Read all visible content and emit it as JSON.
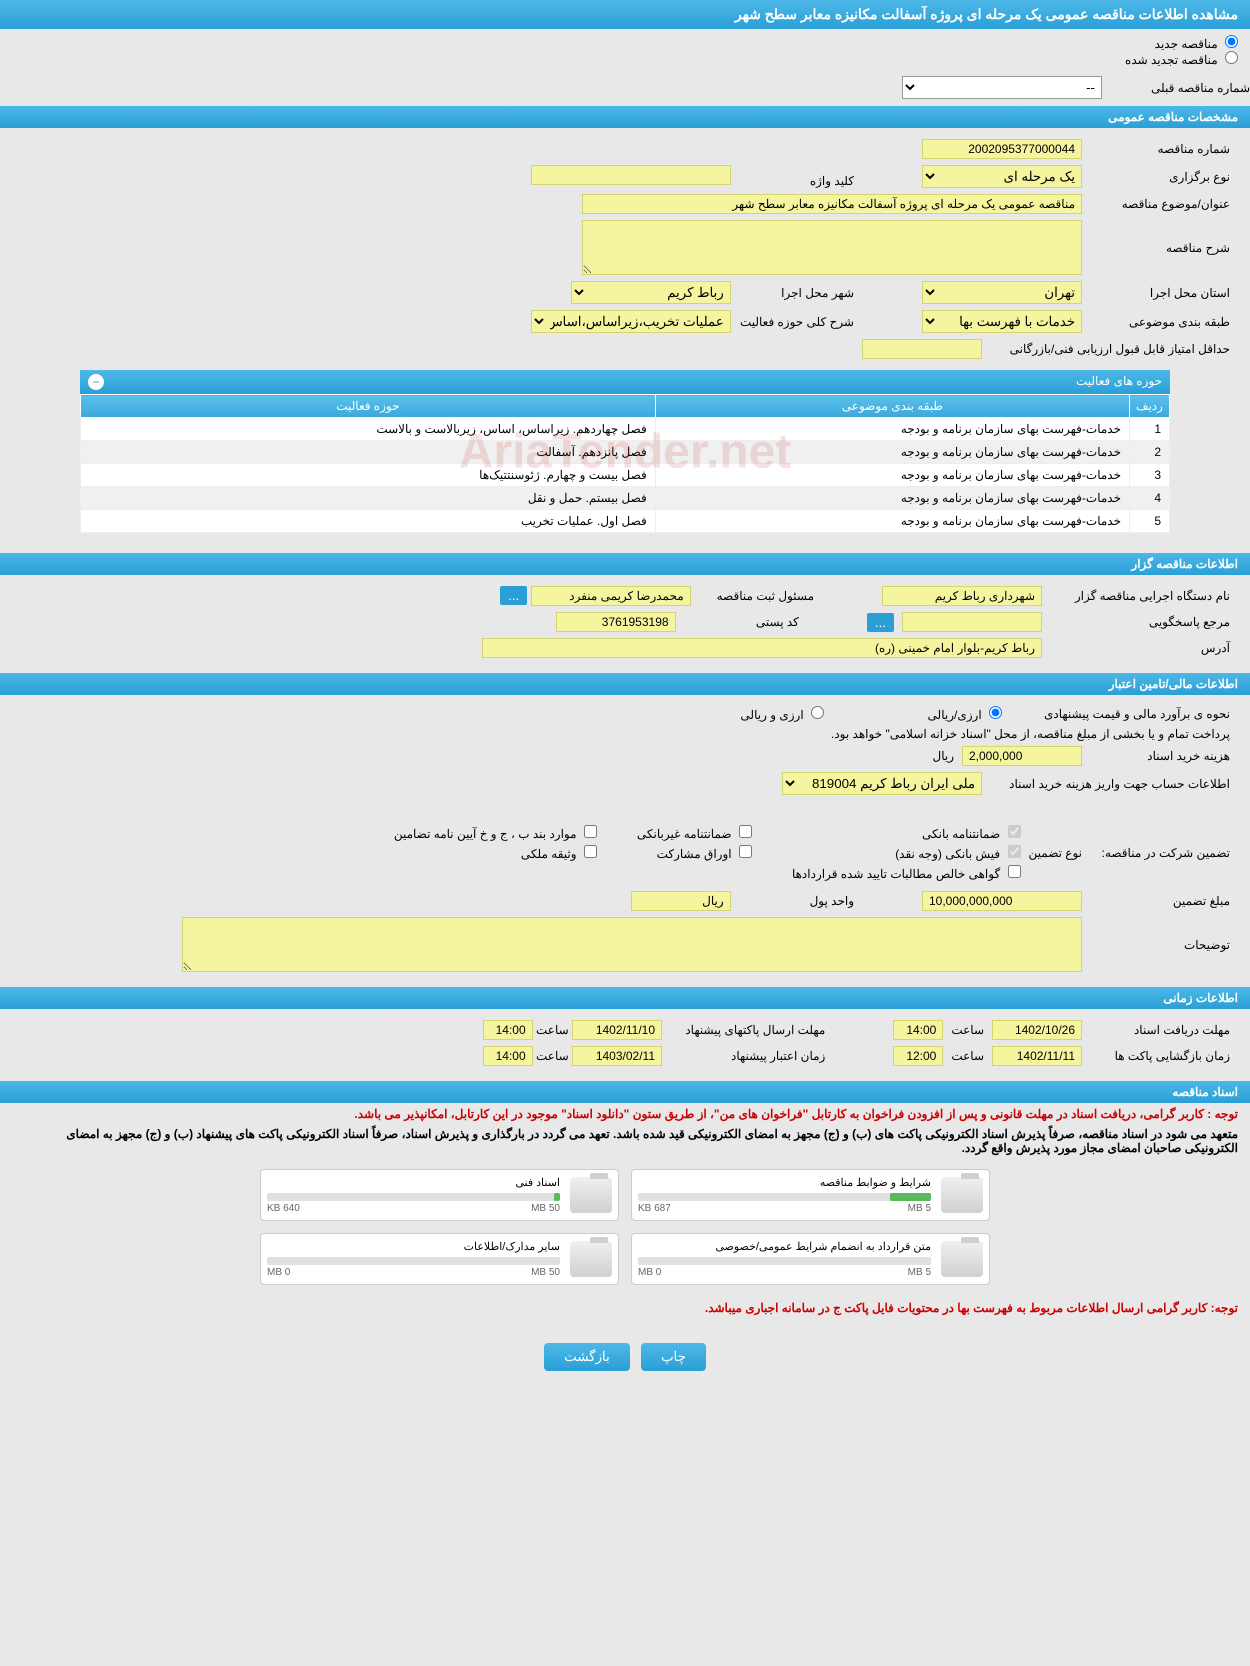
{
  "header": {
    "title": "مشاهده اطلاعات مناقصه عمومی یک مرحله ای پروژه آسفالت مکانیزه معابر سطح شهر"
  },
  "tender_status": {
    "new_label": "مناقصه جدید",
    "renewed_label": "مناقصه تجدید شده",
    "prev_number_label": "شماره مناقصه قبلی",
    "prev_number_value": "--"
  },
  "sections": {
    "general": "مشخصات مناقصه عمومی",
    "organizer": "اطلاعات مناقصه گزار",
    "financial": "اطلاعات مالی/تامین اعتبار",
    "timing": "اطلاعات زمانی",
    "documents": "اسناد مناقصه"
  },
  "general": {
    "number_label": "شماره مناقصه",
    "number_value": "2002095377000044",
    "type_label": "نوع برگزاری",
    "type_value": "یک مرحله ای",
    "keyword_label": "کلید واژه",
    "keyword_value": "",
    "subject_label": "عنوان/موضوع مناقصه",
    "subject_value": "مناقصه عمومی یک مرحله ای پروژه آسفالت مکانیزه معابر سطح شهر",
    "description_label": "شرح مناقصه",
    "description_value": "",
    "province_label": "استان محل اجرا",
    "province_value": "تهران",
    "city_label": "شهر محل اجرا",
    "city_value": "رباط کریم",
    "category_label": "طبقه بندی موضوعی",
    "category_value": "خدمات با فهرست بها",
    "activity_desc_label": "شرح کلی حوزه فعالیت",
    "activity_desc_value": "عملیات تخریب،زیراساس،اساس،زیربالاست",
    "min_score_label": "حداقل امتیاز قابل قبول ارزیابی فنی/بازرگانی",
    "min_score_value": ""
  },
  "activity_table": {
    "title": "حوزه های فعالیت",
    "col_row": "ردیف",
    "col_category": "طبقه بندی موضوعی",
    "col_field": "حوزه فعالیت",
    "rows": [
      {
        "n": "1",
        "cat": "خدمات-فهرست بهای سازمان برنامه و بودجه",
        "field": "فصل چهاردهم. زیراساس، اساس، زیربالاست و بالاست"
      },
      {
        "n": "2",
        "cat": "خدمات-فهرست بهای سازمان برنامه و بودجه",
        "field": "فصل پانزدهم. آسفالت"
      },
      {
        "n": "3",
        "cat": "خدمات-فهرست بهای سازمان برنامه و بودجه",
        "field": "فصل بیست و چهارم. ژئوسنتتیک‌ها"
      },
      {
        "n": "4",
        "cat": "خدمات-فهرست بهای سازمان برنامه و بودجه",
        "field": "فصل بیستم. حمل و نقل"
      },
      {
        "n": "5",
        "cat": "خدمات-فهرست بهای سازمان برنامه و بودجه",
        "field": "فصل اول. عملیات تخریب"
      }
    ]
  },
  "organizer": {
    "org_label": "نام دستگاه اجرایی مناقصه گزار",
    "org_value": "شهرداری رباط کریم",
    "responsible_label": "مسئول ثبت مناقصه",
    "responsible_value": "محمدرضا کریمی منفرد",
    "contact_label": "مرجع پاسخگویی",
    "contact_value": "",
    "postal_label": "کد پستی",
    "postal_value": "3761953198",
    "address_label": "آدرس",
    "address_value": "رباط کریم-بلوار امام خمینی (ره)",
    "more_btn": "..."
  },
  "financial": {
    "estimate_label": "نحوه ی برآورد مالی و قیمت پیشنهادی",
    "option_fx": "ارزی/ریالی",
    "option_rial": "ارزی و ریالی",
    "payment_note": "پرداخت تمام و یا بخشی از مبلغ مناقصه، از محل \"اسناد خزانه اسلامی\" خواهد بود.",
    "doc_cost_label": "هزینه خرید اسناد",
    "doc_cost_value": "2,000,000",
    "currency_rial": "ریال",
    "account_label": "اطلاعات حساب جهت واریز هزینه خرید اسناد",
    "account_value": "ملی ایران رباط کریم 819004",
    "guarantee_label": "تضمین شرکت در مناقصه:",
    "guarantee_type_label": "نوع تضمین",
    "chk_bank_guarantee": "ضمانتنامه بانکی",
    "chk_nonbank_guarantee": "ضمانتنامه غیربانکی",
    "chk_items_bcd": "موارد بند ب ، ج و خ آیین نامه تضامین",
    "chk_cash": "فیش بانکی (وجه نقد)",
    "chk_securities": "اوراق مشارکت",
    "chk_property": "وثیقه ملکی",
    "chk_receivables": "گواهی خالص مطالبات تایید شده قراردادها",
    "guarantee_amount_label": "مبلغ تضمین",
    "guarantee_amount_value": "10,000,000,000",
    "currency_unit_label": "واحد پول",
    "currency_unit_value": "ریال",
    "notes_label": "توضیحات",
    "notes_value": ""
  },
  "timing": {
    "receive_deadline_label": "مهلت دریافت اسناد",
    "receive_deadline_date": "1402/10/26",
    "time_label": "ساعت",
    "receive_deadline_time": "14:00",
    "send_deadline_label": "مهلت ارسال پاکتهای پیشنهاد",
    "send_deadline_date": "1402/11/10",
    "send_deadline_time": "14:00",
    "open_label": "زمان بازگشایی پاکت ها",
    "open_date": "1402/11/11",
    "open_time": "12:00",
    "validity_label": "زمان اعتبار پیشنهاد",
    "validity_date": "1403/02/11",
    "validity_time": "14:00"
  },
  "documents": {
    "note1": "توجه : کاربر گرامی، دریافت اسناد در مهلت قانونی و پس از افزودن فراخوان به کارتابل \"فراخوان های من\"، از طریق ستون \"دانلود اسناد\" موجود در این کارتابل، امکانپذیر می باشد.",
    "note2": "متعهد می شود در اسناد مناقصه، صرفاً پذیرش اسناد الکترونیکی پاکت های (ب) و (ج) مجهز به امضای الکترونیکی قید شده باشد. تعهد می گردد در بارگذاری و پذیرش اسناد، صرفاً اسناد الکترونیکی پاکت های پیشنهاد (ب) و (ج) مجهز به امضای الکترونیکی صاحبان امضای مجاز مورد پذیرش واقع گردد.",
    "note3": "توجه: کاربر گرامی ارسال اطلاعات مربوط به فهرست بها در محتویات فایل پاکت ج در سامانه اجباری میباشد.",
    "files": [
      {
        "title": "شرایط و ضوابط مناقصه",
        "used": "687 KB",
        "max": "5 MB",
        "pct": 14
      },
      {
        "title": "اسناد فنی",
        "used": "640 KB",
        "max": "50 MB",
        "pct": 2
      },
      {
        "title": "متن قرارداد به انضمام شرایط عمومی/خصوصی",
        "used": "0 MB",
        "max": "5 MB",
        "pct": 0
      },
      {
        "title": "سایر مدارک/اطلاعات",
        "used": "0 MB",
        "max": "50 MB",
        "pct": 0
      }
    ]
  },
  "buttons": {
    "print": "چاپ",
    "back": "بازگشت"
  },
  "watermark": "AriaTender.net"
}
